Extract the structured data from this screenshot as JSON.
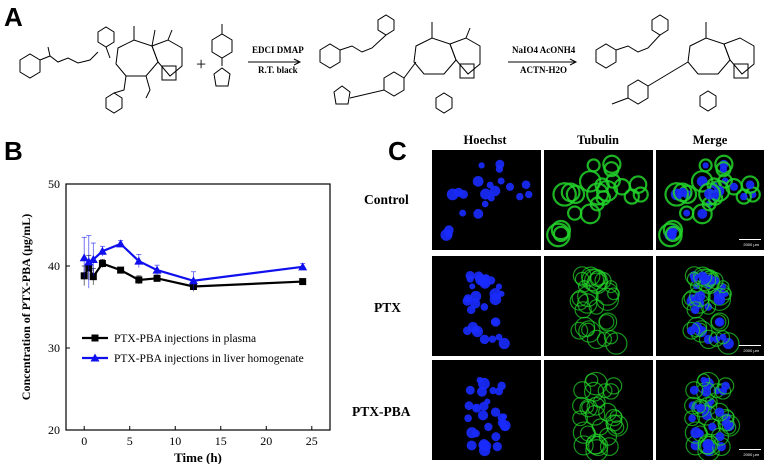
{
  "panels": {
    "a": "A",
    "b": "B",
    "c": "C"
  },
  "scheme": {
    "step1_reagents_top": "EDCI  DMAP",
    "step1_reagents_bottom": "R.T.  black",
    "step2_reagents_top": "NaIO4  AcONH4",
    "step2_reagents_bottom": "ACTN-H2O",
    "plus": "+"
  },
  "microscopy": {
    "columns": [
      "Hoechst",
      "Tubulin",
      "Merge"
    ],
    "rows": [
      "Control",
      "PTX",
      "PTX-PBA"
    ],
    "scale_label": "2000 μm",
    "colors": {
      "hoechst": "#1a2bff",
      "tubulin": "#22d42a"
    }
  },
  "chart_data": {
    "type": "line",
    "xlabel": "Time (h)",
    "ylabel": "Concentration of PTX-PBA (μg/mL)",
    "xlim": [
      -2,
      27
    ],
    "ylim": [
      20,
      50
    ],
    "xticks": [
      0,
      5,
      10,
      15,
      20,
      25
    ],
    "yticks": [
      20,
      30,
      40,
      50
    ],
    "grid": false,
    "legend_position": "lower-left",
    "series": [
      {
        "name": "PTX-PBA injections in plasma",
        "color": "#000000",
        "marker": "square",
        "x": [
          0,
          0.5,
          1,
          2,
          4,
          6,
          8,
          12,
          24
        ],
        "y": [
          38.8,
          39.8,
          38.7,
          40.3,
          39.5,
          38.3,
          38.5,
          37.5,
          38.1
        ],
        "err": [
          1.2,
          1.5,
          1.0,
          0.5,
          0.3,
          0.5,
          0.4,
          0.6,
          0.3
        ]
      },
      {
        "name": "PTX-PBA injections in liver homogenate",
        "color": "#1010ee",
        "marker": "triangle",
        "x": [
          0,
          0.5,
          1,
          2,
          4,
          6,
          8,
          12,
          24
        ],
        "y": [
          41.0,
          40.5,
          40.8,
          41.8,
          42.7,
          40.6,
          39.5,
          38.2,
          39.9
        ],
        "err": [
          2.5,
          3.2,
          2.0,
          0.6,
          0.4,
          0.8,
          0.6,
          1.1,
          0.4
        ]
      }
    ]
  }
}
